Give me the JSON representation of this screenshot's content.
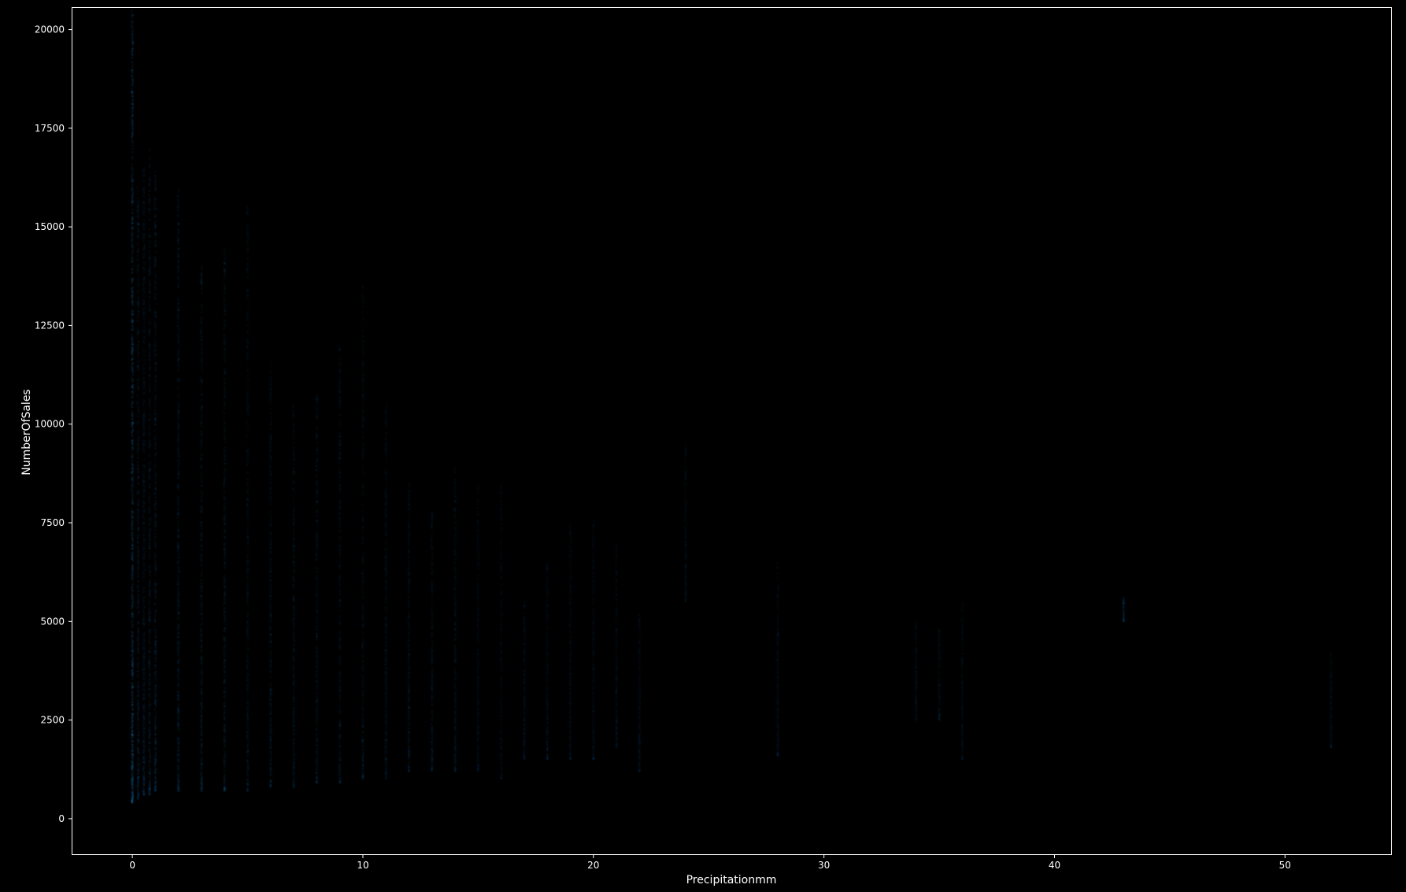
{
  "chart_data": {
    "type": "scatter",
    "title": "",
    "xlabel": "Precipitationmm",
    "ylabel": "NumberOfSales",
    "xlim": [
      -2.6,
      54.6
    ],
    "ylim": [
      -900,
      20550
    ],
    "x_ticks": [
      0,
      10,
      20,
      30,
      40,
      50
    ],
    "x_tick_labels": [
      "0",
      "10",
      "20",
      "30",
      "40",
      "50"
    ],
    "y_ticks": [
      0,
      2500,
      5000,
      7500,
      10000,
      12500,
      15000,
      17500,
      20000
    ],
    "y_tick_labels": [
      "0",
      "2500",
      "5000",
      "7500",
      "10000",
      "12500",
      "15000",
      "17500",
      "20000"
    ],
    "grid": false,
    "legend": "none",
    "colors": {
      "background": "#000000",
      "axes": "#ffffff",
      "text": "#ffffff",
      "points": "#1f77b4"
    },
    "point_alpha": 0.03,
    "columns": [
      {
        "x": 0,
        "ymin": 400,
        "ymax": 20500,
        "density": 1.0
      },
      {
        "x": 0.25,
        "ymin": 500,
        "ymax": 16000,
        "density": 0.55
      },
      {
        "x": 0.5,
        "ymin": 600,
        "ymax": 16500,
        "density": 0.5
      },
      {
        "x": 0.75,
        "ymin": 600,
        "ymax": 17000,
        "density": 0.5
      },
      {
        "x": 1,
        "ymin": 700,
        "ymax": 16500,
        "density": 0.55
      },
      {
        "x": 2,
        "ymin": 700,
        "ymax": 16000,
        "density": 0.5
      },
      {
        "x": 3,
        "ymin": 700,
        "ymax": 14000,
        "density": 0.45
      },
      {
        "x": 4,
        "ymin": 700,
        "ymax": 14500,
        "density": 0.45
      },
      {
        "x": 5,
        "ymin": 700,
        "ymax": 15500,
        "density": 0.4
      },
      {
        "x": 6,
        "ymin": 800,
        "ymax": 11500,
        "density": 0.38
      },
      {
        "x": 7,
        "ymin": 800,
        "ymax": 10500,
        "density": 0.35
      },
      {
        "x": 8,
        "ymin": 900,
        "ymax": 10800,
        "density": 0.33
      },
      {
        "x": 9,
        "ymin": 900,
        "ymax": 12000,
        "density": 0.3
      },
      {
        "x": 10,
        "ymin": 1000,
        "ymax": 13500,
        "density": 0.3
      },
      {
        "x": 11,
        "ymin": 1000,
        "ymax": 10500,
        "density": 0.28
      },
      {
        "x": 12,
        "ymin": 1200,
        "ymax": 8500,
        "density": 0.26
      },
      {
        "x": 13,
        "ymin": 1200,
        "ymax": 7800,
        "density": 0.24
      },
      {
        "x": 14,
        "ymin": 1200,
        "ymax": 9000,
        "density": 0.24
      },
      {
        "x": 15,
        "ymin": 1200,
        "ymax": 8500,
        "density": 0.22
      },
      {
        "x": 16,
        "ymin": 1000,
        "ymax": 8500,
        "density": 0.22
      },
      {
        "x": 17,
        "ymin": 1500,
        "ymax": 5500,
        "density": 0.18
      },
      {
        "x": 18,
        "ymin": 1500,
        "ymax": 6500,
        "density": 0.18
      },
      {
        "x": 19,
        "ymin": 1500,
        "ymax": 7500,
        "density": 0.2
      },
      {
        "x": 20,
        "ymin": 1500,
        "ymax": 7600,
        "density": 0.22
      },
      {
        "x": 21,
        "ymin": 1800,
        "ymax": 7000,
        "density": 0.2
      },
      {
        "x": 22,
        "ymin": 1200,
        "ymax": 5200,
        "density": 0.17
      },
      {
        "x": 24,
        "ymin": 5500,
        "ymax": 9500,
        "density": 0.15
      },
      {
        "x": 28,
        "ymin": 1600,
        "ymax": 6500,
        "density": 0.2
      },
      {
        "x": 34,
        "ymin": 2500,
        "ymax": 5000,
        "density": 0.1
      },
      {
        "x": 35,
        "ymin": 2500,
        "ymax": 4800,
        "density": 0.1
      },
      {
        "x": 36,
        "ymin": 1500,
        "ymax": 5500,
        "density": 0.14
      },
      {
        "x": 43,
        "ymin": 5000,
        "ymax": 5600,
        "density": 0.08
      },
      {
        "x": 52,
        "ymin": 1800,
        "ymax": 4200,
        "density": 0.1
      }
    ]
  }
}
